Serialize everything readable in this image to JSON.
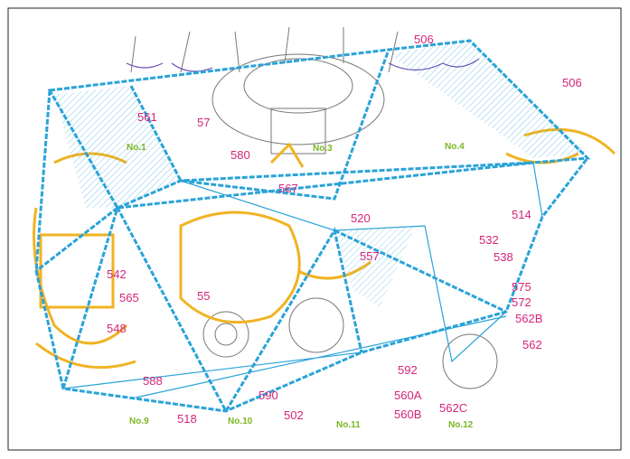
{
  "reference_labels": [
    "506",
    "506",
    "561",
    "57",
    "580",
    "567",
    "520",
    "514",
    "532",
    "538",
    "557",
    "542",
    "565",
    "55",
    "548",
    "575",
    "572",
    "562B",
    "562",
    "592",
    "560A",
    "560B",
    "562C",
    "588",
    "590",
    "502",
    "518"
  ],
  "unit_labels": [
    "No.1",
    "No.3",
    "No.4",
    "No.9",
    "No.10",
    "No.11",
    "No.12"
  ]
}
